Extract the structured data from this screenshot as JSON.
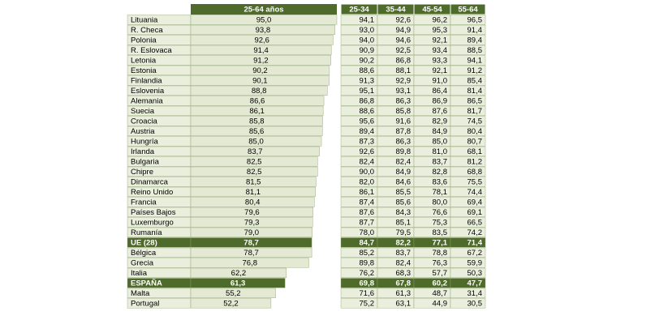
{
  "chart_data": {
    "type": "bar",
    "headers": {
      "main": "25-64 años",
      "groups": [
        "25-34",
        "35-44",
        "45-54",
        "55-64"
      ]
    },
    "rows": [
      {
        "country": "Lituania",
        "total": "95,0",
        "cols": [
          "94,1",
          "92,6",
          "96,2",
          "96,5"
        ],
        "highlight": false
      },
      {
        "country": "R. Checa",
        "total": "93,8",
        "cols": [
          "93,0",
          "94,9",
          "95,3",
          "91,4"
        ],
        "highlight": false
      },
      {
        "country": "Polonia",
        "total": "92,6",
        "cols": [
          "94,0",
          "94,6",
          "92,1",
          "89,4"
        ],
        "highlight": false
      },
      {
        "country": "R. Eslovaca",
        "total": "91,4",
        "cols": [
          "90,9",
          "92,5",
          "93,4",
          "88,5"
        ],
        "highlight": false
      },
      {
        "country": "Letonia",
        "total": "91,2",
        "cols": [
          "90,2",
          "86,8",
          "93,3",
          "94,1"
        ],
        "highlight": false
      },
      {
        "country": "Estonia",
        "total": "90,2",
        "cols": [
          "88,6",
          "88,1",
          "92,1",
          "91,2"
        ],
        "highlight": false
      },
      {
        "country": "Finlandia",
        "total": "90,1",
        "cols": [
          "91,3",
          "92,9",
          "91,0",
          "85,4"
        ],
        "highlight": false
      },
      {
        "country": "Eslovenia",
        "total": "88,8",
        "cols": [
          "95,1",
          "93,1",
          "86,4",
          "81,4"
        ],
        "highlight": false
      },
      {
        "country": "Alemania",
        "total": "86,6",
        "cols": [
          "86,8",
          "86,3",
          "86,9",
          "86,5"
        ],
        "highlight": false
      },
      {
        "country": "Suecia",
        "total": "86,1",
        "cols": [
          "88,6",
          "85,8",
          "87,6",
          "81,7"
        ],
        "highlight": false
      },
      {
        "country": "Croacia",
        "total": "85,8",
        "cols": [
          "95,6",
          "91,6",
          "82,9",
          "74,5"
        ],
        "highlight": false
      },
      {
        "country": "Austria",
        "total": "85,6",
        "cols": [
          "89,4",
          "87,8",
          "84,9",
          "80,4"
        ],
        "highlight": false
      },
      {
        "country": "Hungría",
        "total": "85,0",
        "cols": [
          "87,3",
          "86,3",
          "85,0",
          "80,7"
        ],
        "highlight": false
      },
      {
        "country": "Irlanda",
        "total": "83,7",
        "cols": [
          "92,6",
          "89,8",
          "81,0",
          "68,1"
        ],
        "highlight": false
      },
      {
        "country": "Bulgaria",
        "total": "82,5",
        "cols": [
          "82,4",
          "82,4",
          "83,7",
          "81,2"
        ],
        "highlight": false
      },
      {
        "country": "Chipre",
        "total": "82,5",
        "cols": [
          "90,0",
          "84,9",
          "82,8",
          "68,8"
        ],
        "highlight": false
      },
      {
        "country": "Dinamarca",
        "total": "81,5",
        "cols": [
          "82,0",
          "84,6",
          "83,6",
          "75,5"
        ],
        "highlight": false
      },
      {
        "country": "Reino Unido",
        "total": "81,1",
        "cols": [
          "86,1",
          "85,5",
          "78,1",
          "74,4"
        ],
        "highlight": false
      },
      {
        "country": "Francia",
        "total": "80,4",
        "cols": [
          "87,4",
          "85,6",
          "80,0",
          "69,4"
        ],
        "highlight": false
      },
      {
        "country": "Países Bajos",
        "total": "79,6",
        "cols": [
          "87,6",
          "84,3",
          "76,6",
          "69,1"
        ],
        "highlight": false
      },
      {
        "country": "Luxemburgo",
        "total": "79,3",
        "cols": [
          "87,7",
          "85,1",
          "75,3",
          "66,5"
        ],
        "highlight": false
      },
      {
        "country": "Rumanía",
        "total": "79,0",
        "cols": [
          "78,0",
          "79,5",
          "83,5",
          "74,2"
        ],
        "highlight": false
      },
      {
        "country": "UE (28)",
        "total": "78,7",
        "cols": [
          "84,7",
          "82,2",
          "77,1",
          "71,4"
        ],
        "highlight": true
      },
      {
        "country": "Bélgica",
        "total": "78,7",
        "cols": [
          "85,2",
          "83,7",
          "78,8",
          "67,2"
        ],
        "highlight": false
      },
      {
        "country": "Grecia",
        "total": "76,8",
        "cols": [
          "89,8",
          "82,4",
          "76,3",
          "59,9"
        ],
        "highlight": false
      },
      {
        "country": "Italia",
        "total": "62,2",
        "cols": [
          "76,2",
          "68,3",
          "57,7",
          "50,3"
        ],
        "highlight": false
      },
      {
        "country": "ESPAÑA",
        "total": "61,3",
        "cols": [
          "69,8",
          "67,8",
          "60,2",
          "47,7"
        ],
        "highlight": true
      },
      {
        "country": "Malta",
        "total": "55,2",
        "cols": [
          "71,6",
          "61,3",
          "48,7",
          "31,4"
        ],
        "highlight": false
      },
      {
        "country": "Portugal",
        "total": "52,2",
        "cols": [
          "75,2",
          "63,1",
          "44,9",
          "30,5"
        ],
        "highlight": false
      }
    ]
  },
  "colors": {
    "header": "#4f6b2c",
    "bar": "#e3e9d3",
    "highlight": "#4f6b2c",
    "cell": "#e9eedd",
    "border": "#8aa06a",
    "text": "#000000",
    "highlight_text": "#ffffff"
  }
}
